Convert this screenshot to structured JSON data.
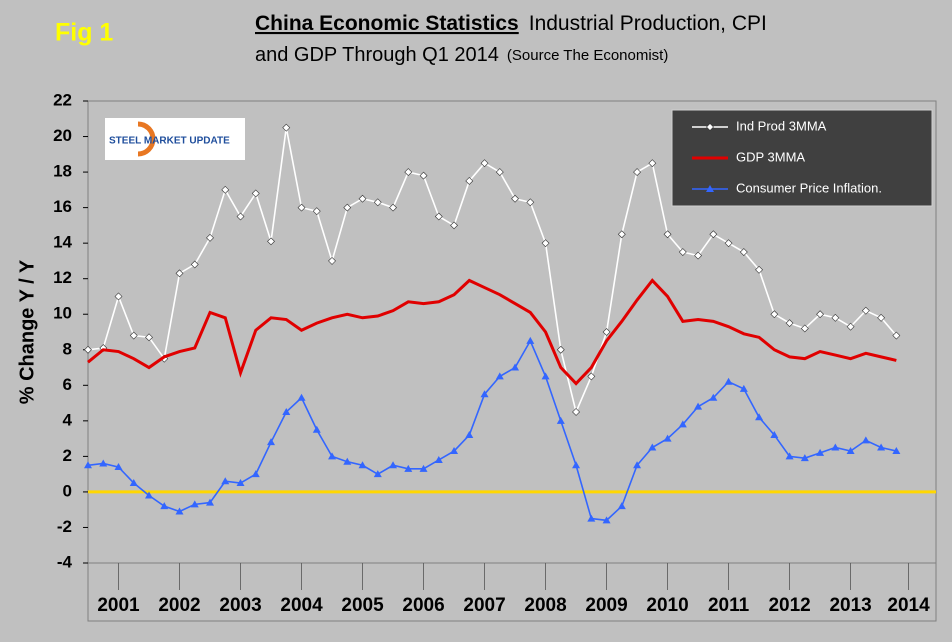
{
  "fig_label": "Fig 1",
  "logo": "STEEL MARKET UPDATE",
  "chart_data": {
    "type": "line",
    "title": "China Economic Statistics",
    "title_rest": "Industrial Production, CPI",
    "subtitle": "and GDP Through Q1 2014",
    "source": "(Source The Economist)",
    "ylabel": "% Change Y / Y",
    "x": [
      2001,
      2001.25,
      2001.5,
      2001.75,
      2002,
      2002.25,
      2002.5,
      2002.75,
      2003,
      2003.25,
      2003.5,
      2003.75,
      2004,
      2004.25,
      2004.5,
      2004.75,
      2005,
      2005.25,
      2005.5,
      2005.75,
      2006,
      2006.25,
      2006.5,
      2006.75,
      2007,
      2007.25,
      2007.5,
      2007.75,
      2008,
      2008.25,
      2008.5,
      2008.75,
      2009,
      2009.25,
      2009.5,
      2009.75,
      2010,
      2010.25,
      2010.5,
      2010.75,
      2011,
      2011.25,
      2011.5,
      2011.75,
      2012,
      2012.25,
      2012.5,
      2012.75,
      2013,
      2013.25,
      2013.5,
      2013.75,
      2014,
      2014.25
    ],
    "xlim": [
      2001,
      2014.9
    ],
    "xticks": [
      {
        "value": 2001.5,
        "label": "2001"
      },
      {
        "value": 2002.5,
        "label": "2002"
      },
      {
        "value": 2003.5,
        "label": "2003"
      },
      {
        "value": 2004.5,
        "label": "2004"
      },
      {
        "value": 2005.5,
        "label": "2005"
      },
      {
        "value": 2006.5,
        "label": "2006"
      },
      {
        "value": 2007.5,
        "label": "2007"
      },
      {
        "value": 2008.5,
        "label": "2008"
      },
      {
        "value": 2009.5,
        "label": "2009"
      },
      {
        "value": 2010.5,
        "label": "2010"
      },
      {
        "value": 2011.5,
        "label": "2011"
      },
      {
        "value": 2012.5,
        "label": "2012"
      },
      {
        "value": 2013.5,
        "label": "2013"
      },
      {
        "value": 2014.45,
        "label": "2014"
      }
    ],
    "ylim": [
      -4,
      22
    ],
    "yticks": [
      -4,
      -2,
      0,
      2,
      4,
      6,
      8,
      10,
      12,
      14,
      16,
      18,
      20,
      22
    ],
    "reference_line": {
      "value": 0,
      "color": "#ffd700"
    },
    "legend": "upper right",
    "series": [
      {
        "name": "Ind Prod 3MMA",
        "color": "#ffffff",
        "marker": "diamond",
        "values": [
          8.0,
          8.1,
          11.0,
          8.8,
          8.7,
          7.5,
          12.3,
          12.8,
          14.3,
          17.0,
          15.5,
          16.8,
          14.1,
          20.5,
          16.0,
          15.8,
          13.0,
          16.0,
          16.5,
          16.3,
          16.0,
          18.0,
          17.8,
          15.5,
          15.0,
          17.5,
          18.5,
          18.0,
          16.5,
          16.3,
          14.0,
          8.0,
          4.5,
          6.5,
          9.0,
          14.5,
          18.0,
          18.5,
          14.5,
          13.5,
          13.3,
          14.5,
          14.0,
          13.5,
          12.5,
          10.0,
          9.5,
          9.2,
          10.0,
          9.8,
          9.3,
          10.2,
          9.8,
          8.8
        ]
      },
      {
        "name": "GDP 3MMA",
        "color": "#e00000",
        "marker": "none",
        "values": [
          7.3,
          8.0,
          7.9,
          7.5,
          7.0,
          7.6,
          7.9,
          8.1,
          10.1,
          9.8,
          6.7,
          9.1,
          9.8,
          9.7,
          9.1,
          9.5,
          9.8,
          10.0,
          9.8,
          9.9,
          10.2,
          10.7,
          10.6,
          10.7,
          11.1,
          11.9,
          11.5,
          11.1,
          10.6,
          10.1,
          9.0,
          7.0,
          6.1,
          7.0,
          8.5,
          9.6,
          10.8,
          11.9,
          11.0,
          9.6,
          9.7,
          9.6,
          9.3,
          8.9,
          8.7,
          8.0,
          7.6,
          7.5,
          7.9,
          7.7,
          7.5,
          7.8,
          7.6,
          7.4
        ]
      },
      {
        "name": "Consumer Price Inflation.",
        "color": "#3366ff",
        "marker": "triangle",
        "values": [
          1.5,
          1.6,
          1.4,
          0.5,
          -0.2,
          -0.8,
          -1.1,
          -0.7,
          -0.6,
          0.6,
          0.5,
          1.0,
          2.8,
          4.5,
          5.3,
          3.5,
          2.0,
          1.7,
          1.5,
          1.0,
          1.5,
          1.3,
          1.3,
          1.8,
          2.3,
          3.2,
          5.5,
          6.5,
          7.0,
          8.5,
          6.5,
          4.0,
          1.5,
          -1.5,
          -1.6,
          -0.8,
          1.5,
          2.5,
          3.0,
          3.8,
          4.8,
          5.3,
          6.2,
          5.8,
          4.2,
          3.2,
          2.0,
          1.9,
          2.2,
          2.5,
          2.3,
          2.9,
          2.5,
          2.3
        ]
      }
    ]
  }
}
